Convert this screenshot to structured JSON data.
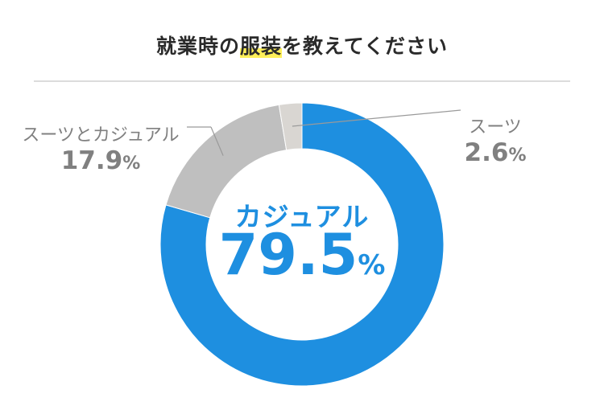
{
  "title": {
    "pre": "就業時の",
    "highlight": "服装",
    "post": "を教えてください"
  },
  "chart_data": {
    "type": "pie",
    "donut": true,
    "categories": [
      "カジュアル",
      "スーツとカジュアル",
      "スーツ"
    ],
    "values": [
      79.5,
      17.9,
      2.6
    ],
    "colors": [
      "#1e8fe0",
      "#bfbfbf",
      "#d9d6d2"
    ],
    "labels": [
      {
        "name": "カジュアル",
        "value": "79.5",
        "unit": "%"
      },
      {
        "name": "スーツとカジュアル",
        "value": "17.9",
        "unit": "%"
      },
      {
        "name": "スーツ",
        "value": "2.6",
        "unit": "%"
      }
    ],
    "start_angle_deg": 0,
    "direction": "clockwise"
  }
}
